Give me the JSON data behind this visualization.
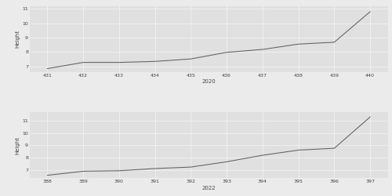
{
  "plot1": {
    "x": [
      431,
      432,
      433,
      434,
      435,
      436,
      437,
      438,
      439,
      440
    ],
    "y": [
      6.85,
      7.28,
      7.28,
      7.35,
      7.52,
      7.98,
      8.18,
      8.55,
      8.68,
      10.8
    ],
    "xlabel": "2020",
    "ylabel": "Height",
    "xlim": [
      430.5,
      440.5
    ],
    "ylim": [
      6.6,
      11.2
    ],
    "yticks": [
      7,
      8,
      9,
      10,
      11
    ],
    "xticks": [
      431,
      432,
      433,
      434,
      435,
      436,
      437,
      438,
      439,
      440
    ]
  },
  "plot2": {
    "x": [
      388,
      389,
      390,
      391,
      392,
      393,
      394,
      395,
      396,
      397
    ],
    "y": [
      6.55,
      6.88,
      6.92,
      7.1,
      7.22,
      7.65,
      8.18,
      8.6,
      8.75,
      11.3
    ],
    "xlabel": "2022",
    "ylabel": "Height",
    "xlim": [
      387.5,
      397.5
    ],
    "ylim": [
      6.3,
      11.7
    ],
    "yticks": [
      7,
      8,
      9,
      10,
      11
    ],
    "xticks": [
      388,
      389,
      390,
      391,
      392,
      393,
      394,
      395,
      396,
      397
    ]
  },
  "fig_bg_color": "#ebebeb",
  "panel_bg_color": "#e0e0e0",
  "line_color": "#606060",
  "grid_color": "#f5f5f5",
  "text_color": "#444444",
  "fontsize_label": 5.0,
  "fontsize_tick": 4.5,
  "line_width": 0.75
}
